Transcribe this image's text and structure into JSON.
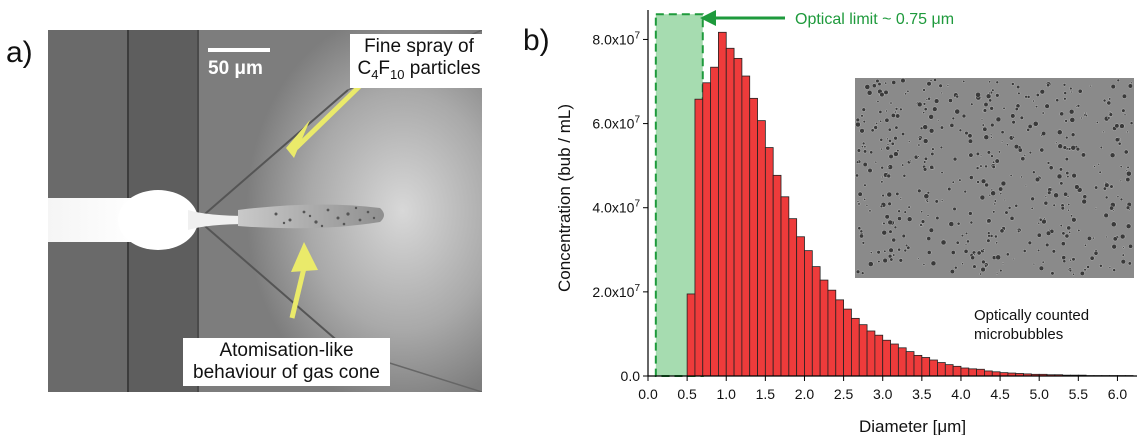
{
  "panel_a": {
    "label": "a)",
    "scale_bar": "50 μm",
    "callout_spray_line1": "Fine spray of",
    "callout_spray_line2_prefix": "C",
    "callout_spray_sub4": "4",
    "callout_spray_f": "F",
    "callout_spray_sub10": "10",
    "callout_spray_suffix": " particles",
    "callout_cone_line1": "Atomisation-like",
    "callout_cone_line2": "behaviour of gas cone"
  },
  "panel_b": {
    "label": "b)",
    "optical_limit_label": "Optical limit ~ 0.75 μm",
    "inset_caption_line1": "Optically counted",
    "inset_caption_line2": "microbubbles"
  },
  "colors": {
    "bar_fill": "#ee3b3b",
    "limit_fill": "#a6dcb0",
    "limit_stroke": "#1e9a3c",
    "annotation_green": "#1e9a3c",
    "arrow_yellow": "#eaea6a"
  },
  "chart_data": {
    "type": "bar",
    "xlabel": "Diameter [μm]",
    "ylabel": "Concentration (bub / mL)",
    "xlim": [
      0,
      6.25
    ],
    "ylim": [
      0,
      87000000
    ],
    "x_ticks": [
      "0.0",
      "0.5",
      "1.0",
      "1.5",
      "2.0",
      "2.5",
      "3.0",
      "3.5",
      "4.0",
      "4.5",
      "5.0",
      "5.5",
      "6.0"
    ],
    "y_ticks": [
      "0.0",
      "2.0x10^7",
      "4.0x10^7",
      "6.0x10^7",
      "8.0x10^7"
    ],
    "bin_width": 0.1,
    "bin_starts": [
      0.5,
      0.6,
      0.7,
      0.8,
      0.9,
      1.0,
      1.1,
      1.2,
      1.3,
      1.4,
      1.5,
      1.6,
      1.7,
      1.8,
      1.9,
      2.0,
      2.1,
      2.2,
      2.3,
      2.4,
      2.5,
      2.6,
      2.7,
      2.8,
      2.9,
      3.0,
      3.1,
      3.2,
      3.3,
      3.4,
      3.5,
      3.6,
      3.7,
      3.8,
      3.9,
      4.0,
      4.1,
      4.2,
      4.3,
      4.4,
      4.5,
      4.6,
      4.7,
      4.8,
      4.9,
      5.0,
      5.1,
      5.2,
      5.3,
      5.4,
      5.5,
      5.6,
      5.7,
      5.8,
      5.9,
      6.0,
      6.1
    ],
    "values": [
      19500000,
      65800000,
      69700000,
      73400000,
      81700000,
      77900000,
      75500000,
      71300000,
      66000000,
      60700000,
      54300000,
      47700000,
      42600000,
      37400000,
      33100000,
      29800000,
      26000000,
      22800000,
      20400000,
      18100000,
      15900000,
      13700000,
      12200000,
      10700000,
      9700000,
      8500000,
      7600000,
      6700000,
      5800000,
      4900000,
      4400000,
      3800000,
      3200000,
      2700000,
      2300000,
      1900000,
      1700000,
      1600000,
      1200000,
      1000000,
      800000,
      700000,
      600000,
      500000,
      400000,
      400000,
      300000,
      300000,
      200000,
      200000,
      200000,
      100000,
      100000,
      100000,
      100000,
      100000,
      100000
    ],
    "optical_limit_region": [
      0.1,
      0.7
    ],
    "optical_limit_top": 86000000
  }
}
